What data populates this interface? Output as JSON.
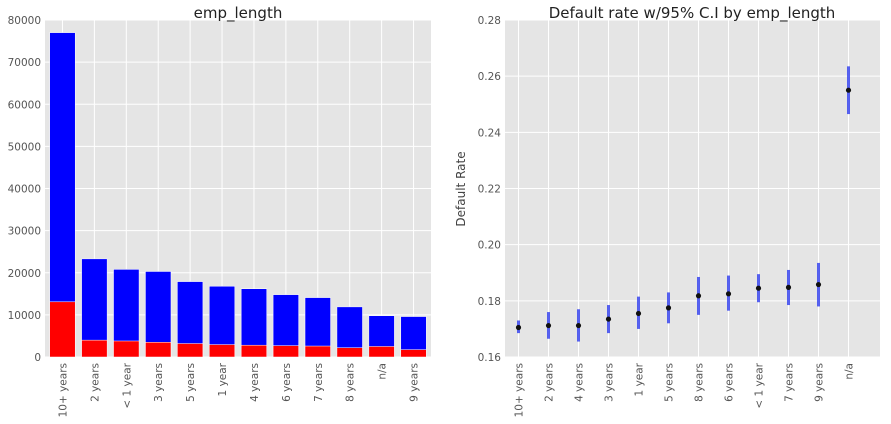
{
  "chart_data": [
    {
      "type": "bar",
      "title": "emp_length",
      "xlabel": "",
      "ylabel": "",
      "ylim": [
        0,
        80000
      ],
      "yticks": [
        0,
        10000,
        20000,
        30000,
        40000,
        50000,
        60000,
        70000,
        80000
      ],
      "categories": [
        "10+ years",
        "2 years",
        "< 1 year",
        "3 years",
        "5 years",
        "1 year",
        "4 years",
        "6 years",
        "7 years",
        "8 years",
        "n/a",
        "9 years"
      ],
      "series": [
        {
          "color": "#0000ff",
          "values": [
            77000,
            23300,
            20800,
            20300,
            17900,
            16800,
            16200,
            14800,
            14100,
            11900,
            9800,
            9600
          ]
        },
        {
          "color": "#ff0000",
          "values": [
            13100,
            4000,
            3800,
            3500,
            3200,
            2950,
            2800,
            2700,
            2600,
            2200,
            2500,
            1750
          ]
        }
      ],
      "grid": true
    },
    {
      "type": "scatter",
      "title": "Default rate w/95% C.I by emp_length",
      "xlabel": "",
      "ylabel": "Default Rate",
      "ylim": [
        0.16,
        0.28
      ],
      "yticks": [
        "0.16",
        "0.18",
        "0.20",
        "0.22",
        "0.24",
        "0.26",
        "0.28"
      ],
      "categories": [
        "10+ years",
        "2 years",
        "4 years",
        "3 years",
        "1 year",
        "5 years",
        "8 years",
        "6 years",
        "< 1 year",
        "7 years",
        "9 years",
        "n/a"
      ],
      "values": [
        0.1705,
        0.1712,
        0.1712,
        0.1735,
        0.1755,
        0.1775,
        0.1818,
        0.1825,
        0.1845,
        0.1848,
        0.1858,
        0.255
      ],
      "ci_low": [
        0.1685,
        0.1665,
        0.1655,
        0.1685,
        0.17,
        0.172,
        0.175,
        0.1765,
        0.1795,
        0.1785,
        0.178,
        0.2465
      ],
      "ci_high": [
        0.173,
        0.176,
        0.177,
        0.1785,
        0.1815,
        0.183,
        0.1885,
        0.189,
        0.1895,
        0.191,
        0.1935,
        0.2635
      ],
      "point_color": "#111111",
      "ci_color": "#3a46ee",
      "grid": true
    }
  ]
}
